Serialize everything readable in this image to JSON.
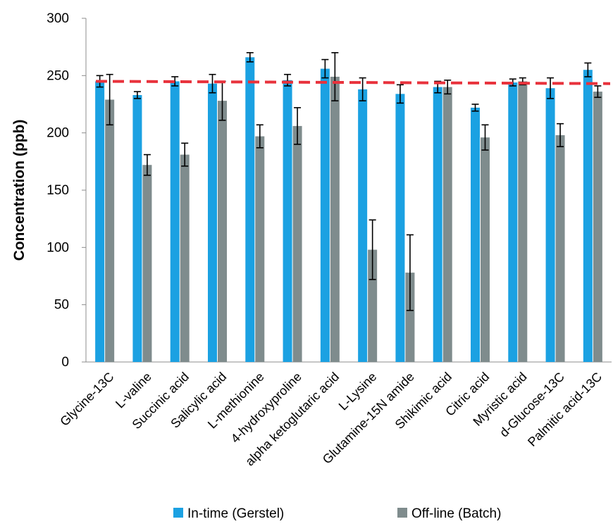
{
  "chart_data": {
    "type": "bar",
    "title": "",
    "xlabel": "",
    "ylabel": "Concentration (ppb)",
    "ylim": [
      0,
      300
    ],
    "yticks": [
      0,
      50,
      100,
      150,
      200,
      250,
      300
    ],
    "grid": false,
    "legend_position": "bottom",
    "categories": [
      "Glycine-13C",
      "L-valine",
      "Succinic acid",
      "Salicylic acid",
      "L-methionine",
      "4-hydroxyproline",
      "alpha ketoglutaric acid",
      "L-Lysine",
      "Glutamine-15N amide",
      "Shikimic acid",
      "Citric acid",
      "Myristic acid",
      "d-Glucose-13C",
      "Palmitic acid-13C"
    ],
    "series": [
      {
        "name": "In-time (Gerstel)",
        "color": "#1ba1e2",
        "values": [
          245,
          233,
          245,
          243,
          266,
          246,
          256,
          238,
          234,
          240,
          222,
          244,
          239,
          255
        ],
        "errors": [
          5,
          3,
          4,
          8,
          4,
          5,
          8,
          10,
          8,
          5,
          3,
          3,
          9,
          6
        ]
      },
      {
        "name": "Off-line (Batch)",
        "color": "#7f8c8d",
        "values": [
          229,
          172,
          181,
          228,
          197,
          206,
          249,
          98,
          78,
          240,
          196,
          245,
          198,
          236
        ],
        "errors": [
          22,
          9,
          10,
          17,
          10,
          16,
          21,
          26,
          33,
          6,
          11,
          3,
          10,
          5
        ]
      }
    ],
    "reference_line": {
      "style": "dashed",
      "color": "#e8323c",
      "start_value": 245,
      "end_value": 243
    }
  }
}
